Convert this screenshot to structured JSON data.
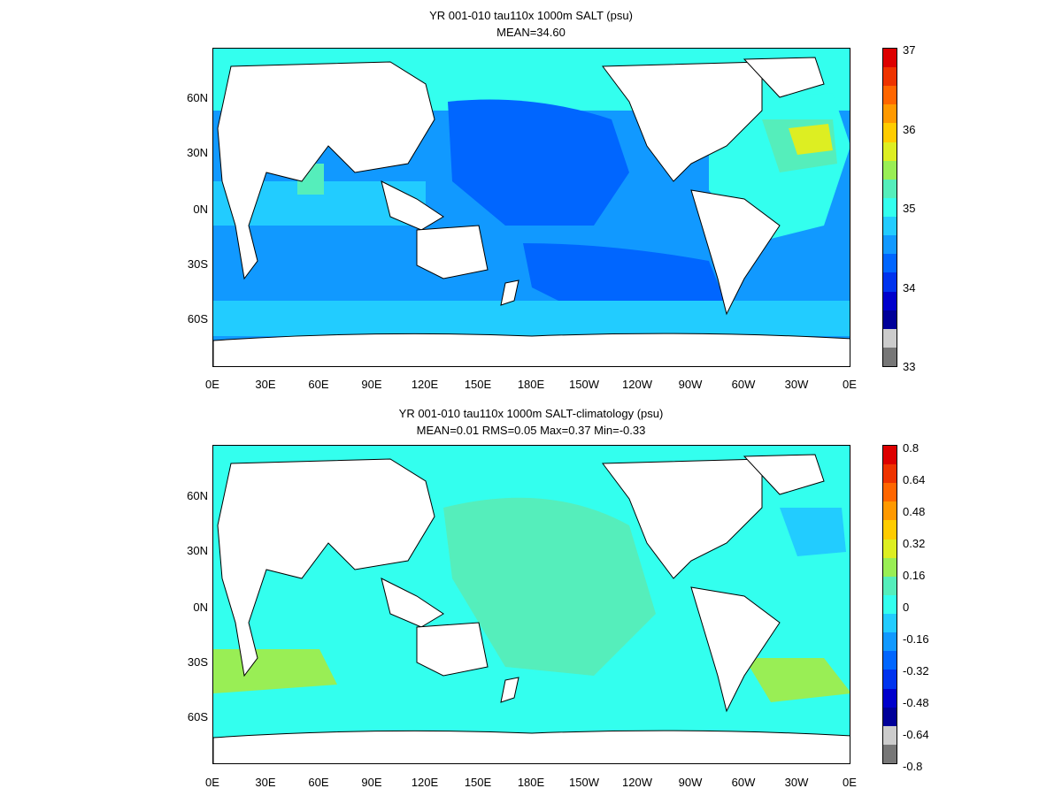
{
  "panels": [
    {
      "title_line1": "YR 001-010 tau110x 1000m SALT (psu)",
      "title_line2": "MEAN=34.60",
      "lat_labels": [
        "60N",
        "30N",
        "0N",
        "30S",
        "60S"
      ],
      "lon_labels": [
        "0E",
        "30E",
        "60E",
        "90E",
        "120E",
        "150E",
        "180E",
        "150W",
        "120W",
        "90W",
        "60W",
        "30W",
        "0E"
      ],
      "colorbar_labels": [
        "37",
        "36",
        "35",
        "34",
        "33"
      ],
      "colorbar_colors": [
        "#dd0000",
        "#ee3300",
        "#ff6600",
        "#ff9900",
        "#ffcc00",
        "#ddee22",
        "#99ee55",
        "#55eebb",
        "#33ffee",
        "#22ccff",
        "#1199ff",
        "#0066ff",
        "#0033ee",
        "#0000cc",
        "#000099",
        "#cccccc",
        "#777777"
      ],
      "ocean_base": "#1199ff"
    },
    {
      "title_line1": "YR 001-010 tau110x 1000m SALT-climatology (psu)",
      "title_line2": "MEAN=0.01   RMS=0.05   Max=0.37   Min=-0.33",
      "lat_labels": [
        "60N",
        "30N",
        "0N",
        "30S",
        "60S"
      ],
      "lon_labels": [
        "0E",
        "30E",
        "60E",
        "90E",
        "120E",
        "150E",
        "180E",
        "150W",
        "120W",
        "90W",
        "60W",
        "30W",
        "0E"
      ],
      "colorbar_labels": [
        "0.8",
        "0.64",
        "0.48",
        "0.32",
        "0.16",
        "0",
        "-0.16",
        "-0.32",
        "-0.48",
        "-0.64",
        "-0.8"
      ],
      "colorbar_colors": [
        "#dd0000",
        "#ee3300",
        "#ff6600",
        "#ff9900",
        "#ffcc00",
        "#ddee22",
        "#99ee55",
        "#55eebb",
        "#33ffee",
        "#22ccff",
        "#1199ff",
        "#0066ff",
        "#0033ee",
        "#0000cc",
        "#000099",
        "#cccccc",
        "#777777"
      ],
      "ocean_base": "#33ffee"
    }
  ]
}
